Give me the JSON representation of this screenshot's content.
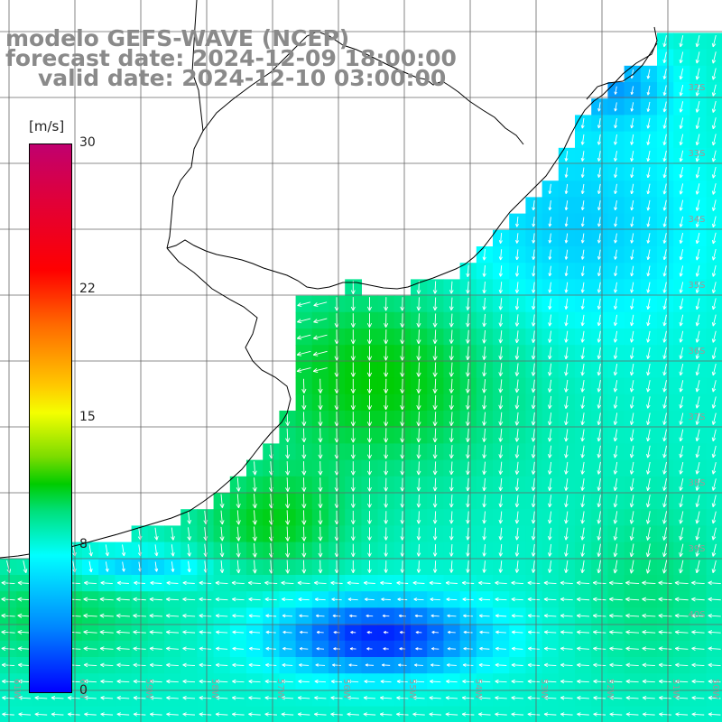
{
  "title": {
    "line1": "modelo GEFS-WAVE (NCEP)",
    "line2": "forecast date: 2024-12-09 18:00:00",
    "line3": "valid date: 2024-12-10 03:00:00"
  },
  "colorbar": {
    "unit": "[m/s]",
    "ticks": [
      {
        "value": 30,
        "label": "30"
      },
      {
        "value": 22,
        "label": "22"
      },
      {
        "value": 15,
        "label": "15"
      },
      {
        "value": 8,
        "label": "8"
      },
      {
        "value": 0,
        "label": "0"
      }
    ],
    "range": [
      0,
      30
    ]
  },
  "map": {
    "variable": "wind speed and direction",
    "lon_range": [
      -61,
      -50
    ],
    "lat_range": [
      -41,
      -30
    ],
    "lat_labels": [
      "32S",
      "33S",
      "34S",
      "35S",
      "36S",
      "37S",
      "38S",
      "39S",
      "40S"
    ],
    "lon_labels": [
      "61W",
      "60W",
      "59W",
      "58W",
      "57W",
      "56W",
      "55W",
      "54W",
      "53W",
      "52W",
      "51W",
      "50W"
    ],
    "land_color": "#ffffff",
    "coast_color": "#000000",
    "grid_color": "#666666",
    "arrow_color": "#ffffff"
  }
}
